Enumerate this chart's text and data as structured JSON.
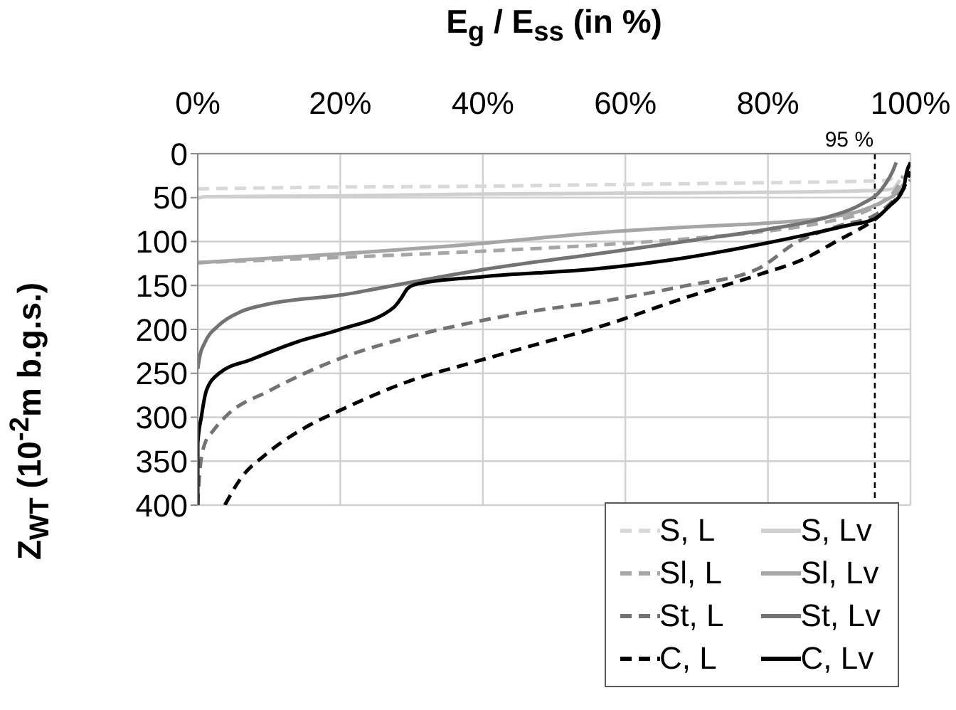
{
  "chart_data": {
    "type": "line",
    "xlabel": "E$_{g}$ / E$_{ss}$ (in %)",
    "ylabel": "Z$_{WT}$ (10$^{-2}$m b.g.s.)",
    "xlim": [
      0,
      100
    ],
    "xticks": [
      {
        "value": 0,
        "label": "0%"
      },
      {
        "value": 20,
        "label": "20%"
      },
      {
        "value": 40,
        "label": "40%"
      },
      {
        "value": 60,
        "label": "60%"
      },
      {
        "value": 80,
        "label": "80%"
      },
      {
        "value": 100,
        "label": "100%"
      }
    ],
    "ylim": [
      400,
      0
    ],
    "yticks": [
      0,
      50,
      100,
      150,
      200,
      250,
      300,
      350,
      400
    ],
    "grid": true,
    "legend": "bottom right",
    "marker": "none",
    "ref_lines": [
      {
        "axis": "x",
        "value": 95,
        "label": "95 %",
        "color": "#000000",
        "line_style": "dashed"
      }
    ],
    "series": [
      {
        "name": "S, L",
        "color": "#d9d9d9",
        "line_style": "dashed",
        "x": [
          0,
          20,
          40,
          60,
          80,
          95,
          97,
          98
        ],
        "values": [
          40,
          38,
          37,
          35,
          33,
          31,
          30,
          20
        ]
      },
      {
        "name": "S, Lv",
        "color": "#d0d0d0",
        "line_style": "solid",
        "x": [
          0,
          1,
          20,
          40,
          60,
          80,
          95,
          97.5,
          98.5
        ],
        "values": [
          51,
          49,
          48,
          46,
          45,
          44,
          42,
          40,
          30
        ]
      },
      {
        "name": "Sl, L",
        "color": "#a6a6a6",
        "line_style": "dashed",
        "x": [
          0,
          10,
          20,
          40,
          56,
          70,
          80,
          88,
          93,
          96,
          98,
          99
        ],
        "values": [
          124,
          121,
          118,
          111,
          104,
          96,
          88,
          78,
          68,
          55,
          40,
          25
        ]
      },
      {
        "name": "Sl, Lv",
        "color": "#a6a6a6",
        "line_style": "solid",
        "x": [
          0,
          20,
          40,
          56,
          70,
          80,
          88,
          93,
          96,
          98,
          99
        ],
        "values": [
          124,
          114,
          102,
          90,
          83,
          79,
          73,
          65,
          55,
          45,
          35
        ]
      },
      {
        "name": "St, L",
        "color": "#737373",
        "line_style": "dashed",
        "x": [
          0,
          0.3,
          1,
          2.2,
          4.2,
          10,
          20,
          30,
          38,
          48,
          56,
          68,
          78.6,
          84,
          90,
          95,
          98,
          100
        ],
        "values": [
          400,
          360,
          330,
          315,
          297,
          270,
          233,
          208,
          193,
          178,
          169,
          151,
          131,
          101,
          82,
          70,
          50,
          30
        ]
      },
      {
        "name": "St, Lv",
        "color": "#737373",
        "line_style": "solid",
        "x": [
          0,
          0.3,
          1,
          3,
          6,
          10,
          20,
          29.5,
          40,
          56,
          70,
          80,
          88,
          93,
          96,
          97.5,
          98
        ],
        "values": [
          245,
          230,
          215,
          195,
          180,
          171,
          161,
          147,
          132,
          114,
          98,
          86,
          73,
          58,
          40,
          20,
          10
        ]
      },
      {
        "name": "C, L",
        "color": "#000000",
        "line_style": "dashed",
        "x": [
          3.8,
          6,
          9.6,
          15,
          20,
          30,
          38,
          48,
          56,
          68,
          79,
          85,
          90,
          93,
          95,
          97,
          99,
          100
        ],
        "values": [
          400,
          370,
          342,
          312,
          292,
          258,
          239,
          216,
          198,
          165,
          137,
          120,
          98,
          85,
          75,
          60,
          40,
          20
        ]
      },
      {
        "name": "C, Lv",
        "color": "#000000",
        "line_style": "solid",
        "x": [
          0,
          0,
          0.5,
          1.2,
          3,
          7.6,
          14,
          20,
          27.5,
          28.5,
          29.5,
          31,
          40,
          56,
          68,
          79,
          85,
          91,
          95,
          97,
          99,
          99.5,
          100
        ],
        "values": [
          400,
          330,
          300,
          270,
          250,
          234,
          214,
          200,
          175,
          165,
          153,
          148,
          140,
          131,
          119,
          103,
          93,
          82,
          74,
          60,
          40,
          20,
          10
        ]
      }
    ]
  }
}
